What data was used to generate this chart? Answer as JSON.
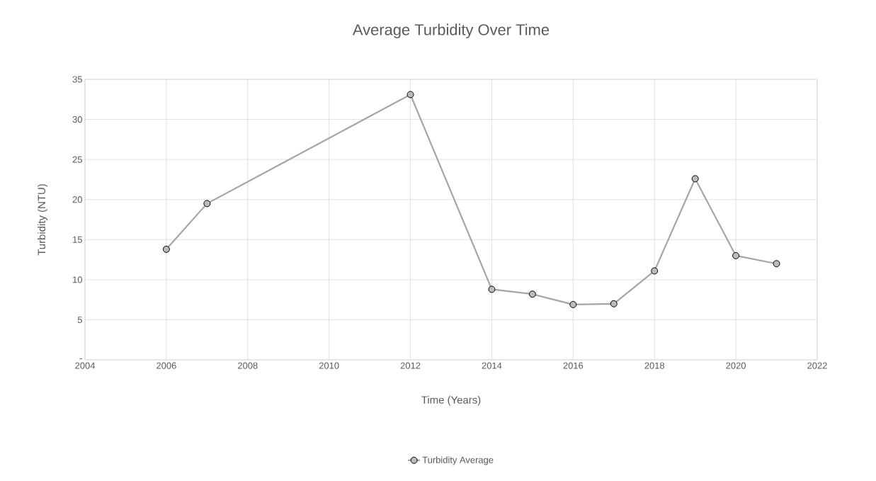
{
  "chart_data": {
    "type": "line",
    "title": "Average Turbidity Over Time",
    "xlabel": "Time (Years)",
    "ylabel": "Turbidity (NTU)",
    "x": [
      2006,
      2007,
      2012,
      2014,
      2015,
      2016,
      2017,
      2018,
      2019,
      2020,
      2021
    ],
    "series": [
      {
        "name": "Turbidity Average",
        "color": "#a5a5a5",
        "values": [
          13.8,
          19.5,
          33.1,
          8.8,
          8.2,
          6.9,
          7.0,
          11.1,
          22.6,
          13.0,
          12.0
        ]
      }
    ],
    "xlim": [
      2004,
      2022
    ],
    "xticks": [
      2004,
      2006,
      2008,
      2010,
      2012,
      2014,
      2016,
      2018,
      2020,
      2022
    ],
    "ylim": [
      0,
      35
    ],
    "yticks": [
      {
        "value": 0,
        "label": "-"
      },
      5,
      10,
      15,
      20,
      25,
      30,
      35
    ],
    "grid": true,
    "legend": "bottom",
    "marker": "circle",
    "line_style": "solid"
  }
}
